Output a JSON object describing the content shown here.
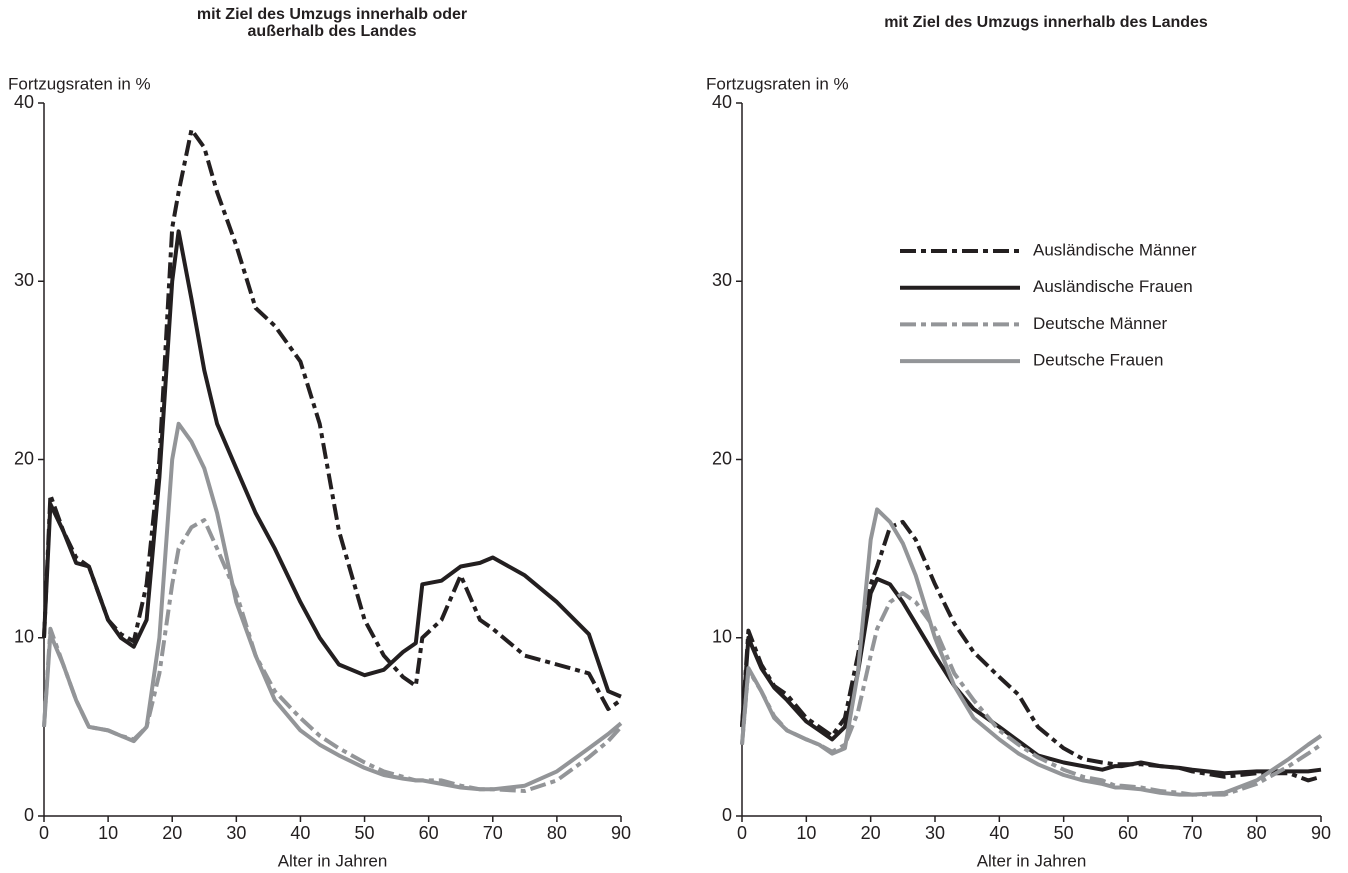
{
  "chart_data": [
    {
      "type": "line",
      "title": [
        "mit Ziel des Umzugs innerhalb oder",
        "außerhalb des Landes"
      ],
      "ylabel": "Fortzugsraten in %",
      "xlabel": "Alter in Jahren",
      "xlim": [
        0,
        90
      ],
      "xticks": [
        0,
        10,
        20,
        30,
        40,
        50,
        60,
        70,
        80,
        90
      ],
      "ylim": [
        0,
        40
      ],
      "yticks": [
        0,
        10,
        20,
        30,
        40
      ],
      "legend": false,
      "x": [
        0,
        1,
        3,
        5,
        7,
        10,
        12,
        14,
        16,
        18,
        20,
        21,
        23,
        25,
        27,
        30,
        33,
        36,
        40,
        43,
        46,
        50,
        53,
        56,
        58,
        59,
        62,
        65,
        68,
        70,
        75,
        80,
        85,
        88,
        90
      ],
      "series": [
        {
          "color": "#231f20",
          "dash": "dashdot",
          "values": [
            10,
            18,
            16,
            14.5,
            14,
            11,
            10.2,
            9.8,
            13,
            20,
            33,
            35,
            38.5,
            37.5,
            35,
            32,
            28.5,
            27.5,
            25.5,
            22,
            16,
            11,
            9,
            7.8,
            7.3,
            10,
            11,
            13.5,
            11,
            10.5,
            9,
            8.5,
            8,
            6,
            6.5
          ]
        },
        {
          "color": "#231f20",
          "dash": "solid",
          "values": [
            10,
            17.5,
            16,
            14.2,
            14,
            11,
            10,
            9.5,
            11,
            19,
            30,
            32.8,
            29,
            25,
            22,
            19.5,
            17,
            15,
            12,
            10,
            8.5,
            7.9,
            8.2,
            9.2,
            9.7,
            13,
            13.2,
            14,
            14.2,
            14.5,
            13.5,
            12,
            10.2,
            7,
            6.7
          ]
        },
        {
          "color": "#939598",
          "dash": "dashdot",
          "values": [
            5,
            10.5,
            8.5,
            6.5,
            5,
            4.8,
            4.5,
            4.3,
            5,
            8,
            13,
            15,
            16.2,
            16.6,
            15,
            12.5,
            9,
            7,
            5.5,
            4.5,
            3.8,
            3,
            2.5,
            2.2,
            2,
            2,
            2,
            1.7,
            1.5,
            1.5,
            1.4,
            2,
            3.3,
            4.2,
            5
          ]
        },
        {
          "color": "#939598",
          "dash": "solid",
          "values": [
            5,
            10.2,
            8.5,
            6.5,
            5,
            4.8,
            4.5,
            4.2,
            5,
            10,
            20,
            22,
            21,
            19.5,
            17,
            12,
            9,
            6.5,
            4.8,
            4,
            3.4,
            2.7,
            2.3,
            2.1,
            2,
            2,
            1.8,
            1.6,
            1.5,
            1.5,
            1.7,
            2.5,
            3.8,
            4.6,
            5.2
          ]
        }
      ]
    },
    {
      "type": "line",
      "title": [
        "mit Ziel des Umzugs innerhalb des Landes"
      ],
      "ylabel": "Fortzugsraten in %",
      "xlabel": "Alter in Jahren",
      "xlim": [
        0,
        90
      ],
      "xticks": [
        0,
        10,
        20,
        30,
        40,
        50,
        60,
        70,
        80,
        90
      ],
      "ylim": [
        0,
        40
      ],
      "yticks": [
        0,
        10,
        20,
        30,
        40
      ],
      "legend": true,
      "x": [
        0,
        1,
        3,
        5,
        7,
        10,
        12,
        14,
        16,
        18,
        20,
        21,
        23,
        25,
        27,
        30,
        33,
        36,
        40,
        43,
        46,
        50,
        53,
        56,
        58,
        59,
        62,
        65,
        68,
        70,
        75,
        80,
        85,
        88,
        90
      ],
      "series": [
        {
          "name": "Ausländische Männer",
          "color": "#231f20",
          "dash": "dashdot",
          "values": [
            5,
            10.4,
            8.5,
            7.3,
            6.8,
            5.5,
            5,
            4.5,
            5.5,
            9,
            13,
            14,
            16.2,
            16.5,
            15.5,
            13,
            10.8,
            9.2,
            7.8,
            6.8,
            5,
            3.8,
            3.2,
            3,
            2.9,
            2.9,
            2.9,
            2.8,
            2.7,
            2.5,
            2.2,
            2.4,
            2.4,
            2,
            2.2
          ]
        },
        {
          "name": "Ausländische Frauen",
          "color": "#231f20",
          "dash": "solid",
          "values": [
            5,
            10,
            8.3,
            7.2,
            6.5,
            5.3,
            4.8,
            4.3,
            5,
            8,
            12.5,
            13.3,
            13,
            12,
            10.8,
            9,
            7.3,
            6,
            5,
            4.2,
            3.4,
            3,
            2.8,
            2.6,
            2.8,
            2.8,
            3,
            2.8,
            2.7,
            2.6,
            2.4,
            2.5,
            2.5,
            2.5,
            2.6
          ]
        },
        {
          "name": "Deutsche Männer",
          "color": "#939598",
          "dash": "dashdot",
          "values": [
            4,
            8.2,
            7,
            5.6,
            4.8,
            4.3,
            4,
            3.6,
            4,
            5.8,
            9,
            10.5,
            12,
            12.5,
            12,
            10.5,
            8,
            6.5,
            4.8,
            4,
            3.3,
            2.6,
            2.2,
            2,
            1.7,
            1.7,
            1.6,
            1.4,
            1.3,
            1.2,
            1.2,
            1.8,
            2.8,
            3.5,
            4
          ]
        },
        {
          "name": "Deutsche Frauen",
          "color": "#939598",
          "dash": "solid",
          "values": [
            4,
            8.3,
            7,
            5.5,
            4.8,
            4.3,
            4,
            3.5,
            3.8,
            8,
            15.5,
            17.2,
            16.5,
            15.3,
            13.5,
            10,
            7.3,
            5.5,
            4.3,
            3.5,
            2.9,
            2.3,
            2,
            1.8,
            1.6,
            1.6,
            1.5,
            1.3,
            1.2,
            1.2,
            1.3,
            2,
            3.2,
            4,
            4.5
          ]
        }
      ]
    }
  ]
}
